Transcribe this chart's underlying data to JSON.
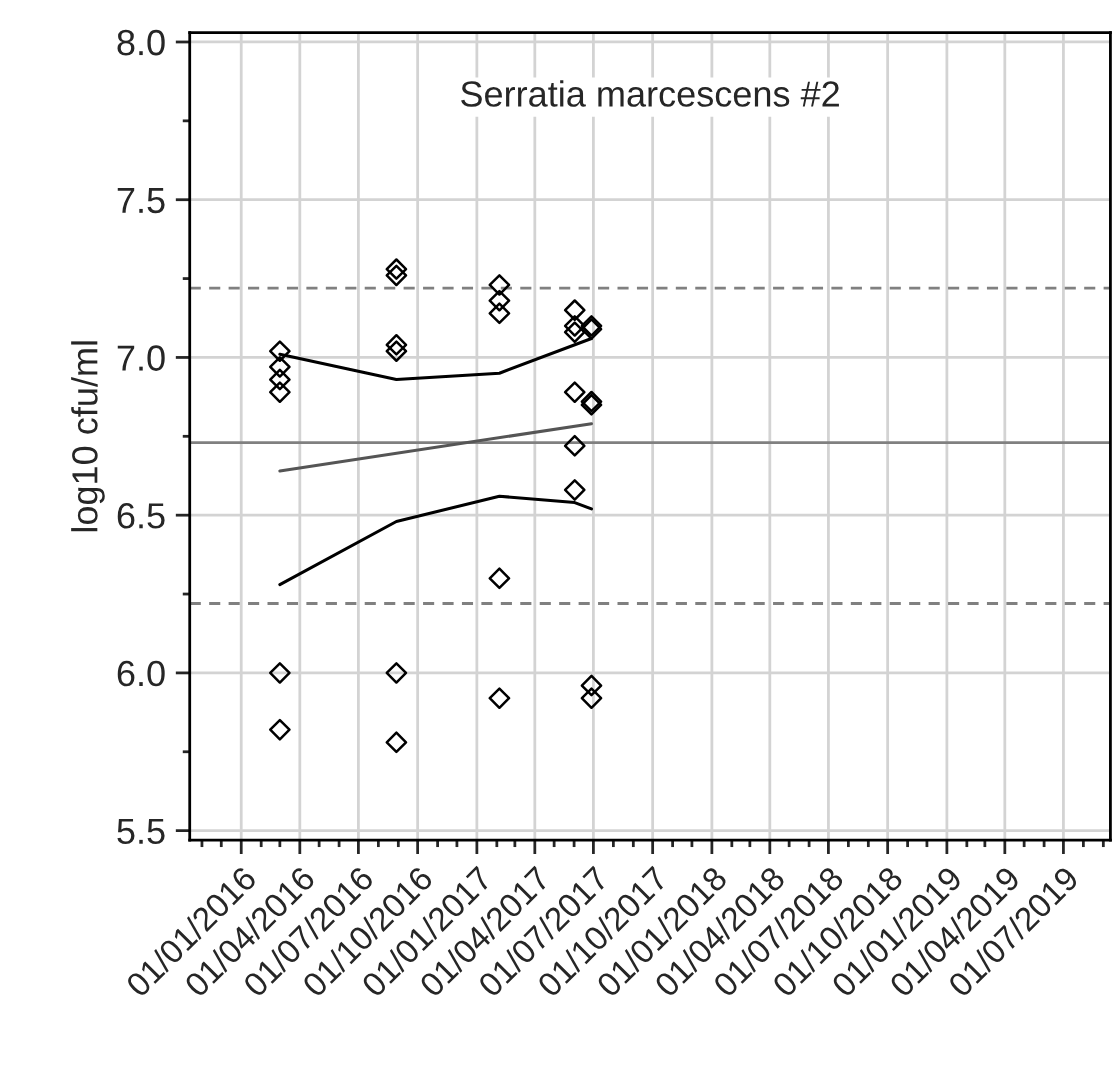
{
  "chart_data": {
    "type": "scatter",
    "title": "Serratia marcescens #2",
    "ylabel": "log10 cfu/ml",
    "series": [
      {
        "color": "#000000",
        "marker": "diamond",
        "x": [
          "2016-03-01",
          "2016-03-01",
          "2016-03-01",
          "2016-03-01",
          "2016-03-01",
          "2016-03-01",
          "2016-08-29",
          "2016-08-29",
          "2016-08-29",
          "2016-08-29",
          "2016-08-29",
          "2016-08-29",
          "2017-02-05",
          "2017-02-05",
          "2017-02-05",
          "2017-02-05",
          "2017-02-05",
          "2017-06-02",
          "2017-06-02",
          "2017-06-02",
          "2017-06-02",
          "2017-06-02",
          "2017-06-02",
          "2017-06-28",
          "2017-06-28",
          "2017-06-28",
          "2017-06-28",
          "2017-06-28",
          "2017-06-28"
        ],
        "values": [
          7.02,
          6.97,
          6.93,
          6.89,
          6.0,
          5.82,
          7.28,
          7.26,
          7.04,
          7.02,
          6.0,
          5.78,
          7.23,
          7.18,
          7.14,
          6.3,
          5.92,
          7.15,
          7.1,
          7.08,
          6.89,
          6.72,
          6.58,
          7.1,
          7.09,
          6.86,
          6.85,
          5.96,
          5.92
        ]
      },
      {
        "type": "line",
        "color": "#000000",
        "x": [
          "2016-03-01",
          "2016-08-29",
          "2017-02-05",
          "2017-06-28"
        ],
        "values": [
          7.01,
          6.93,
          6.95,
          7.06
        ]
      },
      {
        "type": "line",
        "color": "#000000",
        "x": [
          "2016-03-01",
          "2016-08-29",
          "2017-02-05",
          "2017-06-02",
          "2017-06-28"
        ],
        "values": [
          6.28,
          6.48,
          6.56,
          6.54,
          6.52
        ]
      },
      {
        "type": "line",
        "color": "#555555",
        "x": [
          "2016-03-01",
          "2017-06-28"
        ],
        "values": [
          6.64,
          6.79
        ]
      }
    ],
    "ref_lines": [
      {
        "axis": "y",
        "value": 7.22,
        "color": "#808080",
        "line_style": "dashed"
      },
      {
        "axis": "y",
        "value": 6.73,
        "color": "#808080",
        "line_style": "solid"
      },
      {
        "axis": "y",
        "value": 6.22,
        "color": "#808080",
        "line_style": "dashed"
      }
    ],
    "xlim": [
      "2015-10-13",
      "2019-09-12"
    ],
    "xticks": [
      {
        "value": "2016-01-01",
        "label": "01/01/2016"
      },
      {
        "value": "2016-04-01",
        "label": "01/04/2016"
      },
      {
        "value": "2016-07-01",
        "label": "01/07/2016"
      },
      {
        "value": "2016-10-01",
        "label": "01/10/2016"
      },
      {
        "value": "2017-01-01",
        "label": "01/01/2017"
      },
      {
        "value": "2017-04-01",
        "label": "01/04/2017"
      },
      {
        "value": "2017-07-01",
        "label": "01/07/2017"
      },
      {
        "value": "2017-10-01",
        "label": "01/10/2017"
      },
      {
        "value": "2018-01-01",
        "label": "01/01/2018"
      },
      {
        "value": "2018-04-01",
        "label": "01/04/2018"
      },
      {
        "value": "2018-07-01",
        "label": "01/07/2018"
      },
      {
        "value": "2018-10-01",
        "label": "01/10/2018"
      },
      {
        "value": "2019-01-01",
        "label": "01/01/2019"
      },
      {
        "value": "2019-04-01",
        "label": "01/04/2019"
      },
      {
        "value": "2019-07-01",
        "label": "01/07/2019"
      }
    ],
    "ylim": [
      5.47,
      8.03
    ],
    "yticks": [
      {
        "value": 5.5,
        "label": "5.5"
      },
      {
        "value": 6.0,
        "label": "6.0"
      },
      {
        "value": 6.5,
        "label": "6.5"
      },
      {
        "value": 7.0,
        "label": "7.0"
      },
      {
        "value": 7.5,
        "label": "7.5"
      },
      {
        "value": 8.0,
        "label": "8.0"
      }
    ],
    "grid": true,
    "legend": false
  }
}
